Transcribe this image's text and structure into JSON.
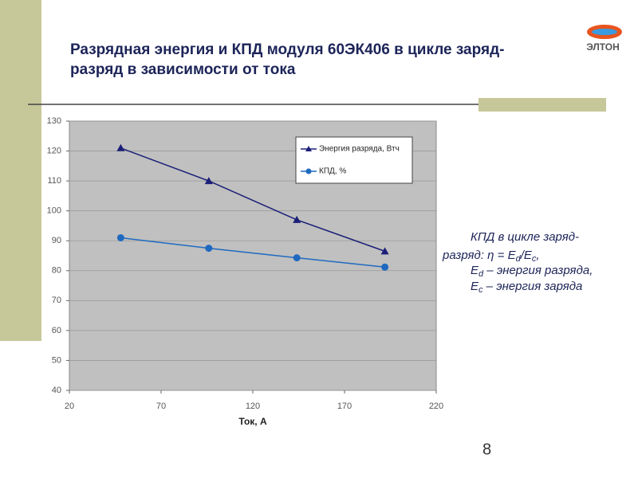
{
  "logo": "ЭЛТОН",
  "page_number": "8",
  "annotation": [
    [
      "КПД в цикле заряд-"
    ],
    [
      "разряд: η = E",
      "d",
      "/E",
      "c",
      ","
    ],
    [
      "E",
      "d",
      " – энергия разряда,"
    ],
    [
      "E",
      "c",
      " – энергия заряда"
    ]
  ],
  "chart_data": {
    "type": "line",
    "title": "Разрядная энергия и КПД модуля 60ЭК406 в цикле заряд-разряд в зависимости от тока",
    "x_label": "Ток, А",
    "x": [
      48,
      96,
      144,
      192
    ],
    "series": [
      {
        "name": "Энергия разряда, Втч",
        "color": "#1c1f78",
        "marker": "triangle",
        "values": [
          121,
          110,
          97,
          86.5
        ]
      },
      {
        "name": "КПД, %",
        "color": "#1f6ac0",
        "marker": "circle",
        "values": [
          91,
          87.5,
          84.3,
          81.2
        ]
      }
    ],
    "xlim": [
      20,
      220
    ],
    "xticks": [
      20,
      70,
      120,
      170,
      220
    ],
    "ylim": [
      40,
      130
    ],
    "yticks": [
      40,
      50,
      60,
      70,
      80,
      90,
      100,
      110,
      120,
      130
    ],
    "grid": true,
    "legend": "upper right",
    "plot_background": "#c0c0c0"
  }
}
